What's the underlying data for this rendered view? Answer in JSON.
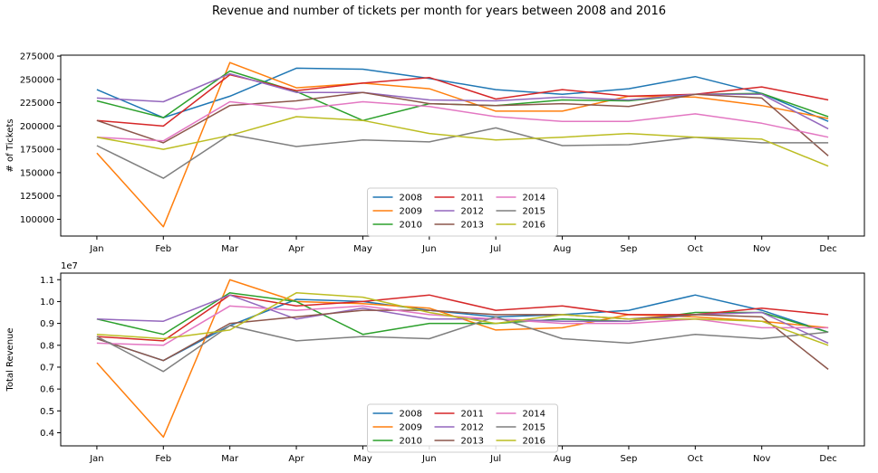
{
  "figure": {
    "title": "Revenue and number of tickets per month for years between 2008 and 2016"
  },
  "colors": {
    "2008": "#1f77b4",
    "2009": "#ff7f0e",
    "2010": "#2ca02c",
    "2011": "#d62728",
    "2012": "#9467bd",
    "2013": "#8c564b",
    "2014": "#e377c2",
    "2015": "#7f7f7f",
    "2016": "#bcbd22"
  },
  "chart_data": [
    {
      "type": "line",
      "title": "",
      "xlabel": "",
      "ylabel": "# of Tickets",
      "categories": [
        "Jan",
        "Feb",
        "Mar",
        "Apr",
        "May",
        "Jun",
        "Jul",
        "Aug",
        "Sep",
        "Oct",
        "Nov",
        "Dec"
      ],
      "ylim": [
        82000,
        276000
      ],
      "yticks": [
        100000,
        125000,
        150000,
        175000,
        200000,
        225000,
        250000,
        275000
      ],
      "ytick_labels": [
        "100000",
        "125000",
        "150000",
        "175000",
        "200000",
        "225000",
        "250000",
        "275000"
      ],
      "legend": {
        "placement": "lower-center",
        "columns": 3
      },
      "series": [
        {
          "name": "2008",
          "values": [
            239000,
            209000,
            232000,
            262000,
            261000,
            251000,
            239000,
            234000,
            240000,
            253000,
            235000,
            205000
          ]
        },
        {
          "name": "2009",
          "values": [
            171000,
            92000,
            268000,
            241000,
            246000,
            240000,
            216000,
            216000,
            232000,
            231000,
            222000,
            208000
          ]
        },
        {
          "name": "2010",
          "values": [
            227000,
            209000,
            259000,
            237000,
            206000,
            224000,
            222000,
            228000,
            227000,
            234000,
            235000,
            210000
          ]
        },
        {
          "name": "2011",
          "values": [
            206000,
            200000,
            255000,
            238000,
            246000,
            252000,
            229000,
            239000,
            232000,
            234000,
            242000,
            228000
          ]
        },
        {
          "name": "2012",
          "values": [
            230000,
            226000,
            256000,
            236000,
            236000,
            228000,
            227000,
            231000,
            228000,
            234000,
            234000,
            197000
          ]
        },
        {
          "name": "2013",
          "values": [
            206000,
            182000,
            222000,
            227000,
            236000,
            224000,
            222000,
            224000,
            221000,
            234000,
            230000,
            168000
          ]
        },
        {
          "name": "2014",
          "values": [
            188000,
            184000,
            226000,
            218000,
            226000,
            221000,
            210000,
            205000,
            205000,
            213000,
            203000,
            188000
          ]
        },
        {
          "name": "2015",
          "values": [
            179000,
            144000,
            191000,
            178000,
            185000,
            183000,
            198000,
            179000,
            180000,
            188000,
            182000,
            182000
          ]
        },
        {
          "name": "2016",
          "values": [
            188000,
            175000,
            190000,
            210000,
            206000,
            192000,
            185000,
            188000,
            192000,
            188000,
            186000,
            157000
          ]
        }
      ]
    },
    {
      "type": "line",
      "title": "",
      "xlabel": "",
      "ylabel": "Total Revenue",
      "y_scale_label": "1e7",
      "categories": [
        "Jan",
        "Feb",
        "Mar",
        "Apr",
        "May",
        "Jun",
        "Jul",
        "Aug",
        "Sep",
        "Oct",
        "Nov",
        "Dec"
      ],
      "ylim": [
        0.34,
        1.13
      ],
      "yticks": [
        0.4,
        0.5,
        0.6,
        0.7,
        0.8,
        0.9,
        1.0,
        1.1
      ],
      "ytick_labels": [
        "0.4",
        "0.5",
        "0.6",
        "0.7",
        "0.8",
        "0.9",
        "1.0",
        "1.1"
      ],
      "legend": {
        "placement": "lower-center",
        "columns": 3
      },
      "series": [
        {
          "name": "2008",
          "values": [
            0.83,
            0.73,
            0.89,
            1.01,
            1.0,
            0.96,
            0.93,
            0.94,
            0.96,
            1.03,
            0.96,
            0.86
          ]
        },
        {
          "name": "2009",
          "values": [
            0.72,
            0.38,
            1.1,
            1.0,
            0.99,
            0.97,
            0.87,
            0.88,
            0.94,
            0.93,
            0.91,
            0.88
          ]
        },
        {
          "name": "2010",
          "values": [
            0.92,
            0.85,
            1.04,
            1.0,
            0.85,
            0.9,
            0.9,
            0.92,
            0.91,
            0.95,
            0.95,
            0.86
          ]
        },
        {
          "name": "2011",
          "values": [
            0.84,
            0.82,
            1.03,
            0.98,
            1.0,
            1.03,
            0.96,
            0.98,
            0.94,
            0.94,
            0.97,
            0.94
          ]
        },
        {
          "name": "2012",
          "values": [
            0.92,
            0.91,
            1.03,
            0.92,
            0.97,
            0.92,
            0.92,
            0.91,
            0.91,
            0.94,
            0.95,
            0.81
          ]
        },
        {
          "name": "2013",
          "values": [
            0.83,
            0.73,
            0.9,
            0.93,
            0.96,
            0.96,
            0.94,
            0.94,
            0.92,
            0.94,
            0.93,
            0.69
          ]
        },
        {
          "name": "2014",
          "values": [
            0.81,
            0.8,
            0.98,
            0.96,
            0.98,
            0.94,
            0.92,
            0.9,
            0.9,
            0.92,
            0.88,
            0.88
          ]
        },
        {
          "name": "2015",
          "values": [
            0.84,
            0.68,
            0.89,
            0.82,
            0.84,
            0.83,
            0.93,
            0.83,
            0.81,
            0.85,
            0.83,
            0.86
          ]
        },
        {
          "name": "2016",
          "values": [
            0.85,
            0.83,
            0.87,
            1.04,
            1.02,
            0.95,
            0.9,
            0.94,
            0.92,
            0.92,
            0.91,
            0.8
          ]
        }
      ]
    }
  ]
}
